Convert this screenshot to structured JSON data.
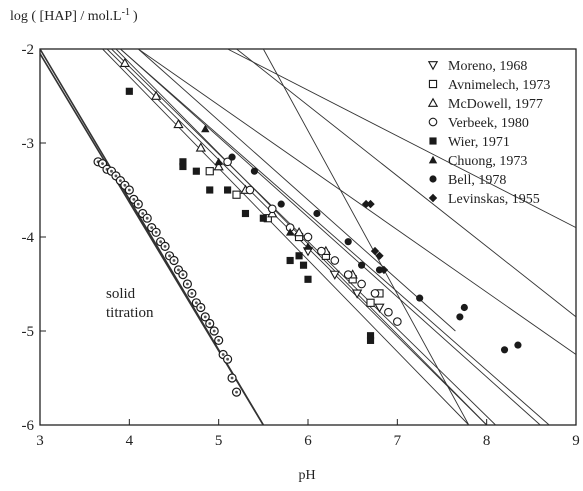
{
  "chart_data": {
    "type": "scatter",
    "title": "",
    "ylabel": "log ( [HAP] / mol.L",
    "ylabel_sup": "-1",
    "ylabel_end": ")",
    "xlabel": "pH",
    "xlim": [
      3,
      9
    ],
    "ylim": [
      -6,
      -2
    ],
    "x_ticks": [
      "3",
      "4",
      "5",
      "6",
      "7",
      "8",
      "9"
    ],
    "y_ticks": [
      "-2",
      "-3",
      "-4",
      "-5",
      "-6"
    ],
    "grid": false,
    "legend_position": "top-right",
    "annotation": [
      "solid",
      "titration"
    ],
    "series": [
      {
        "name": "Moreno, 1968",
        "marker": "triangle-down",
        "points": [
          [
            6.0,
            -4.15
          ],
          [
            6.3,
            -4.4
          ],
          [
            6.55,
            -4.6
          ],
          [
            6.8,
            -4.75
          ]
        ]
      },
      {
        "name": "Avnimelech, 1973",
        "marker": "square-open",
        "points": [
          [
            4.9,
            -3.3
          ],
          [
            5.2,
            -3.55
          ],
          [
            5.55,
            -3.8
          ],
          [
            5.9,
            -4.0
          ],
          [
            6.2,
            -4.2
          ],
          [
            6.5,
            -4.45
          ],
          [
            6.8,
            -4.6
          ],
          [
            6.7,
            -4.7
          ]
        ]
      },
      {
        "name": "McDowell, 1977",
        "marker": "triangle-open",
        "points": [
          [
            3.95,
            -2.15
          ],
          [
            4.3,
            -2.5
          ],
          [
            4.55,
            -2.8
          ],
          [
            4.8,
            -3.05
          ],
          [
            5.0,
            -3.25
          ],
          [
            5.3,
            -3.5
          ],
          [
            5.6,
            -3.75
          ],
          [
            5.9,
            -3.95
          ],
          [
            6.2,
            -4.15
          ],
          [
            6.5,
            -4.4
          ]
        ]
      },
      {
        "name": "Verbeek, 1980",
        "marker": "circle-open",
        "points": [
          [
            5.1,
            -3.2
          ],
          [
            5.35,
            -3.5
          ],
          [
            5.6,
            -3.7
          ],
          [
            5.8,
            -3.9
          ],
          [
            6.0,
            -4.0
          ],
          [
            6.15,
            -4.15
          ],
          [
            6.3,
            -4.25
          ],
          [
            6.45,
            -4.4
          ],
          [
            6.6,
            -4.5
          ],
          [
            6.75,
            -4.6
          ],
          [
            6.9,
            -4.8
          ],
          [
            7.0,
            -4.9
          ]
        ]
      },
      {
        "name": "Wier, 1971",
        "marker": "square-filled",
        "points": [
          [
            4.0,
            -2.45
          ],
          [
            4.6,
            -3.2
          ],
          [
            4.6,
            -3.25
          ],
          [
            4.75,
            -3.3
          ],
          [
            4.9,
            -3.5
          ],
          [
            5.1,
            -3.5
          ],
          [
            5.3,
            -3.75
          ],
          [
            5.5,
            -3.8
          ],
          [
            5.8,
            -4.25
          ],
          [
            5.9,
            -4.2
          ],
          [
            5.95,
            -4.3
          ],
          [
            6.0,
            -4.45
          ],
          [
            6.7,
            -5.05
          ],
          [
            6.7,
            -5.1
          ]
        ]
      },
      {
        "name": "Chuong, 1973",
        "marker": "triangle-filled",
        "points": [
          [
            4.85,
            -2.85
          ],
          [
            5.0,
            -3.2
          ],
          [
            5.8,
            -3.95
          ],
          [
            6.0,
            -4.1
          ]
        ]
      },
      {
        "name": "Bell, 1978",
        "marker": "circle-filled",
        "points": [
          [
            5.15,
            -3.15
          ],
          [
            5.4,
            -3.3
          ],
          [
            5.7,
            -3.65
          ],
          [
            6.1,
            -3.75
          ],
          [
            6.45,
            -4.05
          ],
          [
            6.6,
            -4.3
          ],
          [
            6.8,
            -4.35
          ],
          [
            7.25,
            -4.65
          ],
          [
            7.7,
            -4.85
          ],
          [
            7.75,
            -4.75
          ],
          [
            8.2,
            -5.2
          ],
          [
            8.35,
            -5.15
          ]
        ]
      },
      {
        "name": "Levinskas, 1955",
        "marker": "diamond-filled",
        "points": [
          [
            6.65,
            -3.65
          ],
          [
            6.7,
            -3.65
          ],
          [
            6.75,
            -4.15
          ],
          [
            6.8,
            -4.2
          ],
          [
            6.85,
            -4.35
          ]
        ]
      },
      {
        "name": "solid titration",
        "marker": "circle-target",
        "points": [
          [
            3.65,
            -3.2
          ],
          [
            3.7,
            -3.22
          ],
          [
            3.75,
            -3.28
          ],
          [
            3.8,
            -3.3
          ],
          [
            3.85,
            -3.35
          ],
          [
            3.9,
            -3.4
          ],
          [
            3.95,
            -3.45
          ],
          [
            4.0,
            -3.5
          ],
          [
            4.05,
            -3.6
          ],
          [
            4.1,
            -3.65
          ],
          [
            4.15,
            -3.75
          ],
          [
            4.2,
            -3.8
          ],
          [
            4.25,
            -3.9
          ],
          [
            4.3,
            -3.95
          ],
          [
            4.35,
            -4.05
          ],
          [
            4.4,
            -4.1
          ],
          [
            4.45,
            -4.2
          ],
          [
            4.5,
            -4.25
          ],
          [
            4.55,
            -4.35
          ],
          [
            4.6,
            -4.4
          ],
          [
            4.65,
            -4.5
          ],
          [
            4.7,
            -4.6
          ],
          [
            4.75,
            -4.7
          ],
          [
            4.8,
            -4.75
          ],
          [
            4.85,
            -4.85
          ],
          [
            4.9,
            -4.92
          ],
          [
            4.95,
            -5.0
          ],
          [
            5.0,
            -5.1
          ],
          [
            5.05,
            -5.25
          ],
          [
            5.1,
            -5.3
          ],
          [
            5.15,
            -5.5
          ],
          [
            5.2,
            -5.65
          ]
        ]
      }
    ],
    "fit_lines": [
      [
        [
          3.0,
          -2.0
        ],
        [
          5.5,
          -6.0
        ]
      ],
      [
        [
          3.0,
          -2.05
        ],
        [
          5.5,
          -6.0
        ]
      ],
      [
        [
          3.7,
          -2.0
        ],
        [
          7.8,
          -6.0
        ]
      ],
      [
        [
          3.75,
          -2.0
        ],
        [
          8.0,
          -6.0
        ]
      ],
      [
        [
          3.8,
          -2.0
        ],
        [
          8.1,
          -6.0
        ]
      ],
      [
        [
          3.85,
          -2.0
        ],
        [
          8.0,
          -6.0
        ]
      ],
      [
        [
          3.9,
          -2.0
        ],
        [
          8.7,
          -6.0
        ]
      ],
      [
        [
          3.9,
          -2.0
        ],
        [
          8.6,
          -6.0
        ]
      ],
      [
        [
          4.1,
          -2.0
        ],
        [
          7.65,
          -5.0
        ]
      ],
      [
        [
          4.1,
          -2.0
        ],
        [
          9.0,
          -5.25
        ]
      ],
      [
        [
          5.1,
          -2.0
        ],
        [
          9.0,
          -3.9
        ]
      ],
      [
        [
          5.2,
          -2.0
        ],
        [
          9.0,
          -4.85
        ]
      ],
      [
        [
          5.5,
          -2.0
        ],
        [
          7.8,
          -6.0
        ]
      ]
    ]
  }
}
